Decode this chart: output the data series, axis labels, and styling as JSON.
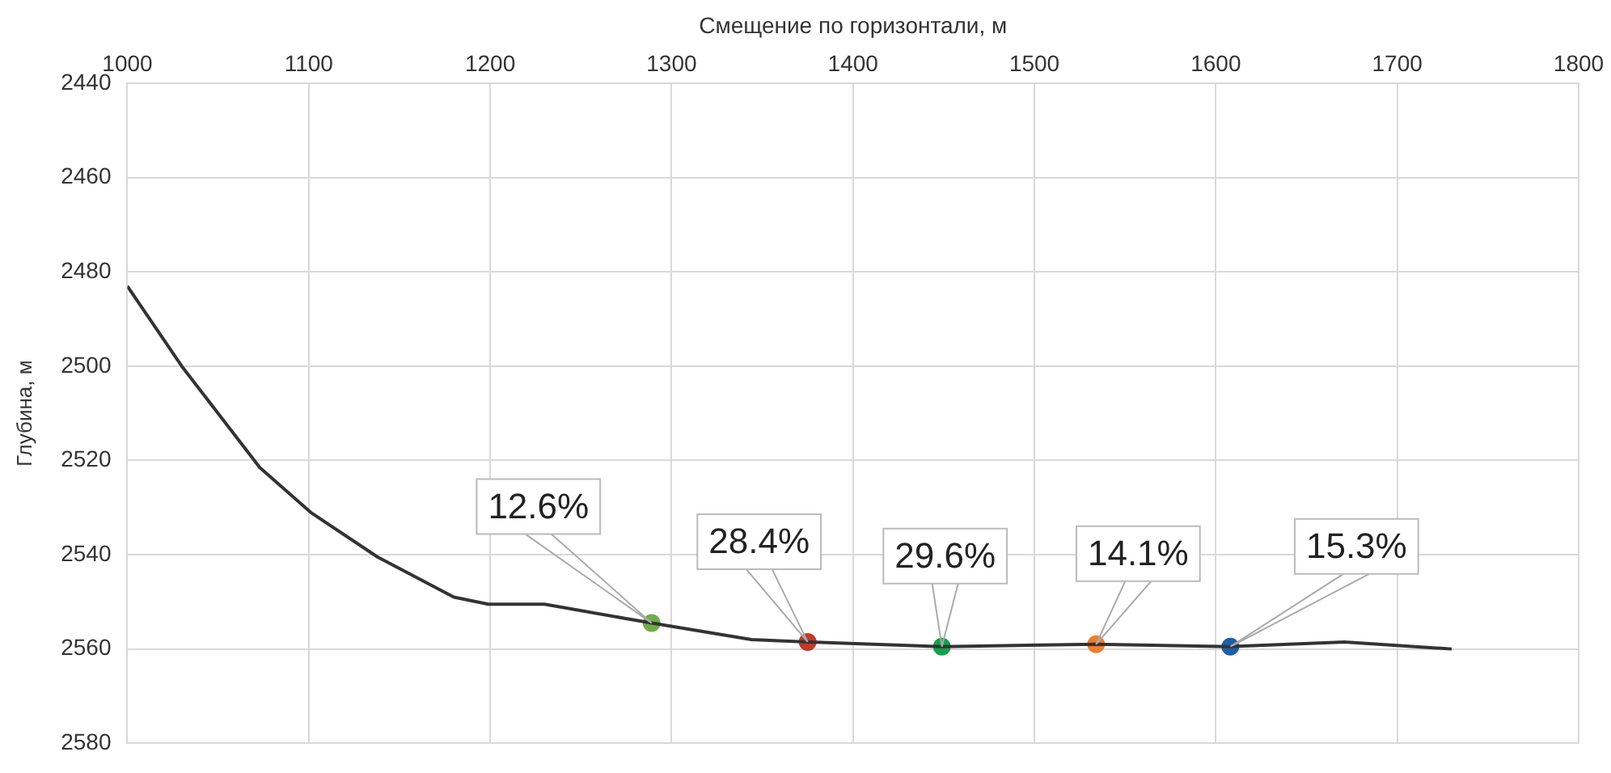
{
  "chart_data": {
    "type": "line",
    "xlabel": "Смещение по горизонтали, м",
    "ylabel": "Глубина, м",
    "xlim": [
      1000,
      1800
    ],
    "xticks": [
      1000,
      1100,
      1200,
      1300,
      1400,
      1500,
      1600,
      1700,
      1800
    ],
    "ylim": [
      2580,
      2440
    ],
    "yticks": [
      2440,
      2460,
      2480,
      2500,
      2520,
      2540,
      2560,
      2580
    ],
    "grid": true,
    "legend": false,
    "series": [
      {
        "color": "#333333",
        "marker": "none",
        "x": [
          1000,
          1030,
          1073,
          1101,
          1138,
          1180,
          1199,
          1230,
          1289,
          1344,
          1375,
          1449,
          1534,
          1608,
          1671,
          1730
        ],
        "values": [
          2483,
          2500,
          2521.5,
          2531,
          2540.5,
          2549,
          2550.5,
          2550.5,
          2554.5,
          2558,
          2558.5,
          2559.5,
          2559,
          2559.5,
          2558.5,
          2560
        ]
      },
      {
        "type": "scatter",
        "marker": "circle",
        "x": [
          1289,
          1375,
          1449,
          1534,
          1608
        ],
        "values": [
          2554.5,
          2558.5,
          2559.5,
          2559,
          2559.5
        ],
        "colors": [
          "#70ad47",
          "#c0392b",
          "#12a04a",
          "#ed7d31",
          "#1f5fa8"
        ]
      }
    ],
    "annotations": [
      {
        "text": "12.6%",
        "x": 1289,
        "y": 2554.5
      },
      {
        "text": "28.4%",
        "x": 1375,
        "y": 2558.5
      },
      {
        "text": "29.6%",
        "x": 1449,
        "y": 2559.5
      },
      {
        "text": "14.1%",
        "x": 1534,
        "y": 2559
      },
      {
        "text": "15.3%",
        "x": 1608,
        "y": 2559.5
      }
    ]
  }
}
